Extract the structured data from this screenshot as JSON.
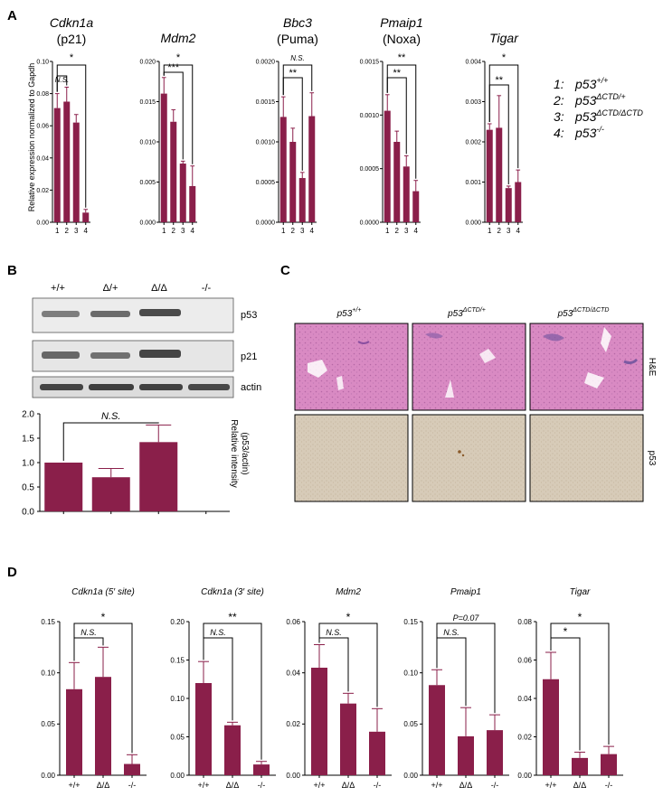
{
  "panels": {
    "A": "A",
    "B": "B",
    "C": "C",
    "D": "D"
  },
  "colors": {
    "bar": "#8a1f4a",
    "axis": "#000000"
  },
  "panelA": {
    "ylabel": "Relative expression normalized to Gapdh",
    "categories": [
      "1",
      "2",
      "3",
      "4"
    ],
    "legend": [
      {
        "num": "1:",
        "text": "p53",
        "sup": "+/+"
      },
      {
        "num": "2:",
        "text": "p53",
        "sup": "ΔCTD/+"
      },
      {
        "num": "3:",
        "text": "p53",
        "sup": "ΔCTD/ΔCTD"
      },
      {
        "num": "4:",
        "text": "p53",
        "sup": "-/-"
      }
    ]
  },
  "panelB": {
    "lanes": [
      "+/+",
      "Δ/+",
      "Δ/Δ",
      "-/-"
    ],
    "blots": [
      "p53",
      "p21",
      "actin"
    ],
    "ylabel": "Relative intensity (p53/actin)"
  },
  "panelC": {
    "columns": [
      {
        "text": "p53",
        "sup": "+/+"
      },
      {
        "text": "p53",
        "sup": "ΔCTD/+"
      },
      {
        "text": "p53",
        "sup": "ΔCTD/ΔCTD"
      }
    ],
    "rows": [
      "H&E",
      "p53"
    ]
  },
  "panelD": {
    "categories": [
      "+/+",
      "Δ/Δ",
      "-/-"
    ]
  },
  "chart_data": [
    {
      "type": "bar",
      "panel": "A",
      "title": "Cdkn1a",
      "subtitle": "(p21)",
      "categories": [
        "1",
        "2",
        "3",
        "4"
      ],
      "values": [
        0.071,
        0.075,
        0.062,
        0.006
      ],
      "errors": [
        0.009,
        0.009,
        0.005,
        0.002
      ],
      "ylim": [
        0,
        0.1
      ],
      "yticks": [
        "0.00",
        "0.02",
        "0.04",
        "0.06",
        "0.08",
        "0.10"
      ],
      "annotations": [
        "N.S.",
        "*"
      ]
    },
    {
      "type": "bar",
      "panel": "A",
      "title": "Mdm2",
      "subtitle": "",
      "categories": [
        "1",
        "2",
        "3",
        "4"
      ],
      "values": [
        0.016,
        0.0125,
        0.0073,
        0.0045
      ],
      "errors": [
        0.002,
        0.0015,
        0.0003,
        0.0025
      ],
      "ylim": [
        0,
        0.02
      ],
      "yticks": [
        "0.000",
        "0.005",
        "0.010",
        "0.015",
        "0.020"
      ],
      "annotations": [
        "***",
        "*"
      ]
    },
    {
      "type": "bar",
      "panel": "A",
      "title": "Bbc3",
      "subtitle": "(Puma)",
      "categories": [
        "1",
        "2",
        "3",
        "4"
      ],
      "values": [
        0.00131,
        0.001,
        0.00055,
        0.00132
      ],
      "errors": [
        0.00025,
        0.00017,
        7e-05,
        0.00029
      ],
      "ylim": [
        0,
        0.002
      ],
      "yticks": [
        "0.0000",
        "0.0005",
        "0.0010",
        "0.0015",
        "0.0020"
      ],
      "annotations": [
        "**",
        "N.S."
      ]
    },
    {
      "type": "bar",
      "panel": "A",
      "title": "Pmaip1",
      "subtitle": "(Noxa)",
      "categories": [
        "1",
        "2",
        "3",
        "4"
      ],
      "values": [
        0.00104,
        0.00075,
        0.00052,
        0.00029
      ],
      "errors": [
        0.00015,
        0.0001,
        0.0001,
        0.0001
      ],
      "ylim": [
        0,
        0.0015
      ],
      "yticks": [
        "0.0000",
        "0.0005",
        "0.0010",
        "0.0015"
      ],
      "annotations": [
        "**",
        "**"
      ]
    },
    {
      "type": "bar",
      "panel": "A",
      "title": "Tigar",
      "subtitle": "",
      "categories": [
        "1",
        "2",
        "3",
        "4"
      ],
      "values": [
        0.0023,
        0.00235,
        0.00085,
        0.001
      ],
      "errors": [
        0.00015,
        0.0008,
        5e-05,
        0.0003
      ],
      "ylim": [
        0,
        0.004
      ],
      "yticks": [
        "0.000",
        "0.001",
        "0.002",
        "0.003",
        "0.004"
      ],
      "annotations": [
        "**",
        "*"
      ]
    },
    {
      "type": "bar",
      "panel": "B",
      "title": "",
      "subtitle": "",
      "categories": [
        "+/+",
        "Δ/+",
        "Δ/Δ",
        "-/-"
      ],
      "values": [
        1.0,
        0.7,
        1.42,
        0
      ],
      "errors": [
        0,
        0.18,
        0.35,
        0
      ],
      "ylim": [
        0,
        2.0
      ],
      "yticks": [
        "0.0",
        "0.5",
        "1.0",
        "1.5",
        "2.0"
      ],
      "annotations": [
        "N.S."
      ]
    },
    {
      "type": "bar",
      "panel": "D",
      "title": "Cdkn1a (5′ site)",
      "subtitle": "",
      "categories": [
        "+/+",
        "Δ/Δ",
        "-/-"
      ],
      "values": [
        0.084,
        0.096,
        0.011
      ],
      "errors": [
        0.026,
        0.029,
        0.009
      ],
      "ylim": [
        0,
        0.15
      ],
      "yticks": [
        "0.00",
        "0.05",
        "0.10",
        "0.15"
      ],
      "annotations": [
        "N.S.",
        "*"
      ]
    },
    {
      "type": "bar",
      "panel": "D",
      "title": "Cdkn1a (3′ site)",
      "subtitle": "",
      "categories": [
        "+/+",
        "Δ/Δ",
        "-/-"
      ],
      "values": [
        0.12,
        0.065,
        0.014
      ],
      "errors": [
        0.028,
        0.004,
        0.004
      ],
      "ylim": [
        0,
        0.2
      ],
      "yticks": [
        "0.00",
        "0.05",
        "0.10",
        "0.15",
        "0.20"
      ],
      "annotations": [
        "N.S.",
        "**"
      ]
    },
    {
      "type": "bar",
      "panel": "D",
      "title": "Mdm2",
      "subtitle": "",
      "categories": [
        "+/+",
        "Δ/Δ",
        "-/-"
      ],
      "values": [
        0.042,
        0.028,
        0.017
      ],
      "errors": [
        0.009,
        0.004,
        0.009
      ],
      "ylim": [
        0,
        0.06
      ],
      "yticks": [
        "0.00",
        "0.02",
        "0.04",
        "0.06"
      ],
      "annotations": [
        "N.S.",
        "*"
      ]
    },
    {
      "type": "bar",
      "panel": "D",
      "title": "Pmaip1",
      "subtitle": "",
      "categories": [
        "+/+",
        "Δ/Δ",
        "-/-"
      ],
      "values": [
        0.088,
        0.038,
        0.044
      ],
      "errors": [
        0.015,
        0.028,
        0.015
      ],
      "ylim": [
        0,
        0.15
      ],
      "yticks": [
        "0.00",
        "0.05",
        "0.10",
        "0.15"
      ],
      "annotations": [
        "N.S.",
        "P=0.07"
      ]
    },
    {
      "type": "bar",
      "panel": "D",
      "title": "Tigar",
      "subtitle": "",
      "categories": [
        "+/+",
        "Δ/Δ",
        "-/-"
      ],
      "values": [
        0.05,
        0.009,
        0.011
      ],
      "errors": [
        0.014,
        0.003,
        0.004
      ],
      "ylim": [
        0,
        0.08
      ],
      "yticks": [
        "0.00",
        "0.02",
        "0.04",
        "0.06",
        "0.08"
      ],
      "annotations": [
        "*",
        "*"
      ]
    }
  ]
}
